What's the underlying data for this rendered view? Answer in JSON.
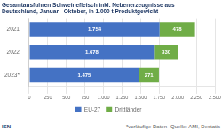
{
  "chart_data": {
    "type": "bar",
    "orientation": "horizontal",
    "stacked": true,
    "title": [
      "Gesamtausfuhren Schweinefleisch inkl. Nebenerzeugnisse aus",
      "Deutschland, Januar - Oktober, in 1.000 t Produktgewicht"
    ],
    "categories": [
      "2021",
      "2022",
      "2023*"
    ],
    "series": [
      {
        "name": "EU-27",
        "color": "#4472c4",
        "values": [
          1754,
          1678,
          1475
        ],
        "value_labels": [
          "1.754",
          "1.678",
          "1.475"
        ]
      },
      {
        "name": "Drittländer",
        "color": "#70ad47",
        "values": [
          478,
          330,
          271
        ],
        "value_labels": [
          "478",
          "330",
          "271"
        ]
      }
    ],
    "xlim": [
      0,
      2500
    ],
    "xticks": [
      0,
      250,
      500,
      750,
      {
        "value": 1000,
        "label": "1.000"
      },
      {
        "value": 1250,
        "label": "1.250"
      },
      {
        "value": 1500,
        "label": "1.500"
      },
      {
        "value": 1750,
        "label": "1.750"
      },
      {
        "value": 2000,
        "label": "2.000"
      },
      {
        "value": 2250,
        "label": "2.250"
      },
      {
        "value": 2500,
        "label": "2.500"
      }
    ],
    "grid": true,
    "legend": "bottom",
    "data_labels": true,
    "annotations": [
      "ISN",
      "*vorläufige Daten",
      "Quelle: AMI, Destatis"
    ]
  }
}
